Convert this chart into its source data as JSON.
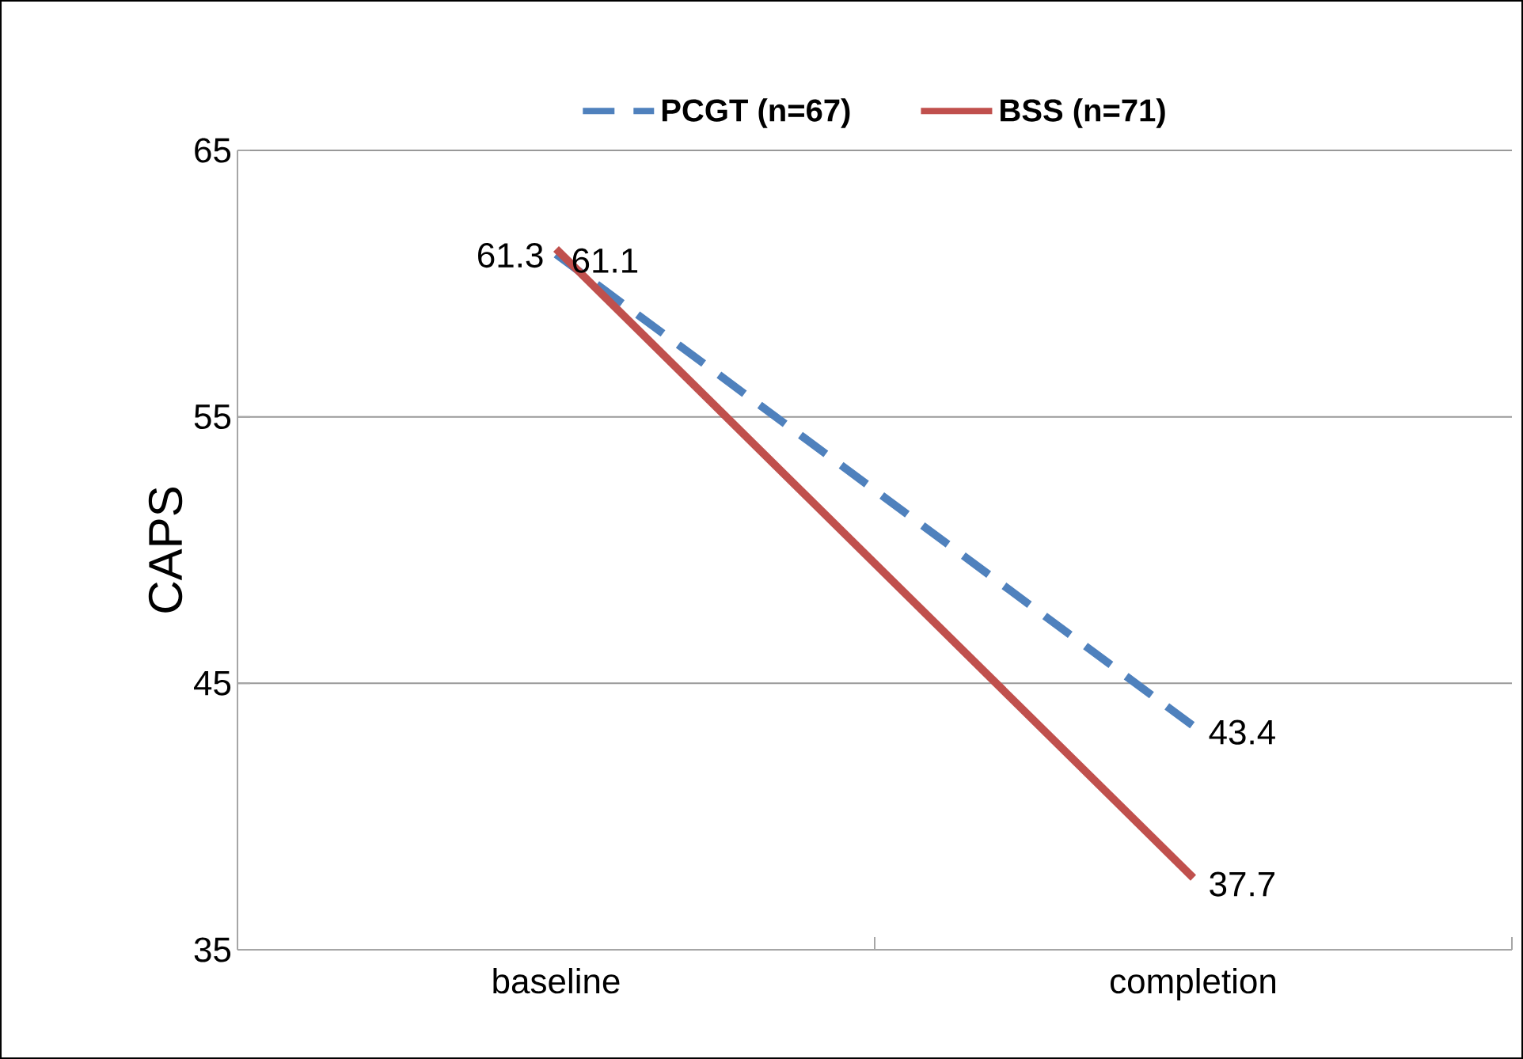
{
  "chart_data": {
    "type": "line",
    "ylabel": "CAPS",
    "categories": [
      "baseline",
      "completion"
    ],
    "series": [
      {
        "name": "PCGT (n=67)",
        "color": "#4f81bd",
        "values": [
          61.1,
          43.4
        ],
        "line_style": "dashed"
      },
      {
        "name": "BSS (n=71)",
        "color": "#c0504d",
        "values": [
          61.3,
          37.7
        ],
        "line_style": "solid"
      }
    ],
    "ylim": [
      35,
      65
    ],
    "yticks": [
      35,
      45,
      55,
      65
    ],
    "grid": "y",
    "legend": "top",
    "data_labels": true
  }
}
